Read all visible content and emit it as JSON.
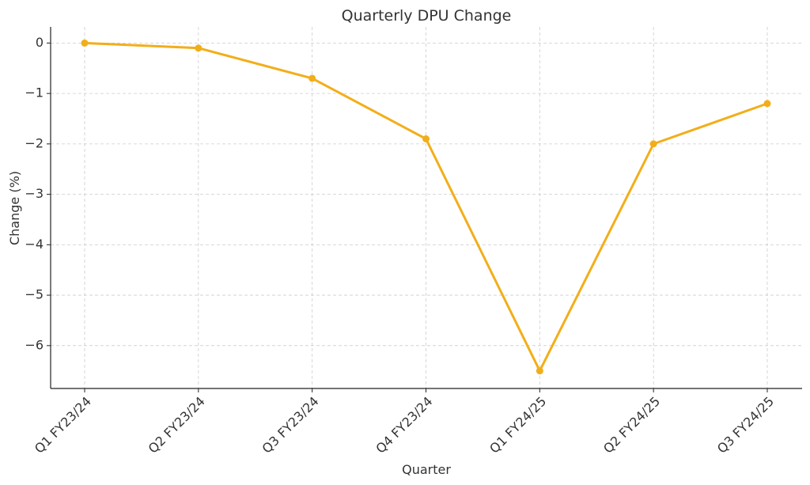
{
  "chart_data": {
    "type": "line",
    "title": "Quarterly DPU Change",
    "xlabel": "Quarter",
    "ylabel": "Change (%)",
    "categories": [
      "Q1 FY23/24",
      "Q2 FY23/24",
      "Q3 FY23/24",
      "Q4 FY23/24",
      "Q1 FY24/25",
      "Q2 FY24/25",
      "Q3 FY24/25"
    ],
    "series": [
      {
        "values": [
          0,
          -0.1,
          -0.7,
          -1.9,
          -6.5,
          -2.0,
          -1.2
        ]
      }
    ],
    "ylim": [
      -6.85,
      0.32
    ],
    "yticks": [
      0,
      -1,
      -2,
      -3,
      -4,
      -5,
      -6
    ],
    "ytick_labels": [
      "0",
      "−1",
      "−2",
      "−3",
      "−4",
      "−5",
      "−6"
    ],
    "grid": true,
    "colors": {
      "line": "#f2ae1a",
      "marker": "#f2ae1a"
    }
  }
}
